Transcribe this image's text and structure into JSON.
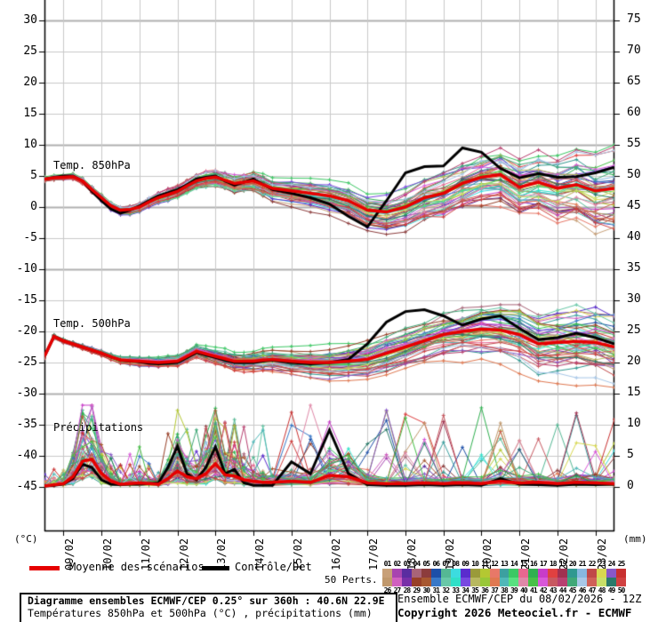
{
  "chart": {
    "unit_left": "(°C)",
    "unit_right": "(mm)",
    "panel_labels": {
      "t850": "Temp. 850hPa",
      "t500": "Temp. 500hPa",
      "precip": "Précipitations"
    },
    "left_ticks": [
      "30",
      "25",
      "20",
      "15",
      "10",
      "5",
      "0",
      "-5",
      "-10",
      "-15",
      "-20",
      "-25",
      "-30",
      "-35",
      "-40",
      "-45"
    ],
    "right_ticks": [
      "75",
      "70",
      "65",
      "60",
      "55",
      "50",
      "45",
      "40",
      "35",
      "30",
      "25",
      "20",
      "15",
      "10",
      "5",
      "0"
    ],
    "dates": [
      "09/02",
      "10/02",
      "11/02",
      "12/02",
      "13/02",
      "14/02",
      "15/02",
      "16/02",
      "17/02",
      "18/02",
      "19/02",
      "20/02",
      "21/02",
      "22/02",
      "23/02"
    ]
  },
  "legend": {
    "mean_label": "Moyenne des scénarios",
    "control_label": "Contrôle/Det",
    "perts_label": "50 Perts.",
    "mean_color": "#e60000",
    "control_color": "#000000",
    "pert_numbers_top": [
      "01",
      "02",
      "03",
      "04",
      "05",
      "06",
      "07",
      "08",
      "09",
      "10",
      "11",
      "12",
      "13",
      "14",
      "15",
      "16",
      "17",
      "18",
      "19",
      "20",
      "21",
      "22",
      "23",
      "24",
      "25"
    ],
    "pert_numbers_bottom": [
      "26",
      "27",
      "28",
      "29",
      "30",
      "31",
      "32",
      "33",
      "34",
      "35",
      "36",
      "37",
      "38",
      "39",
      "40",
      "41",
      "42",
      "43",
      "44",
      "45",
      "46",
      "47",
      "48",
      "49",
      "50"
    ],
    "pert_colors": [
      "#c8a078",
      "#a844b0",
      "#5a2da0",
      "#a86478",
      "#8c3c3c",
      "#1d4fa8",
      "#55b894",
      "#3cdce0",
      "#5a2ccd",
      "#9a9a3a",
      "#b4c832",
      "#e87868",
      "#3ca0a0",
      "#3cc864",
      "#e86890",
      "#30b050",
      "#c83cc8",
      "#e04040",
      "#a03050",
      "#309890",
      "#88b8e0",
      "#c04848",
      "#d8d850",
      "#8858c8",
      "#c83030",
      "#c0986c",
      "#d060c0",
      "#7830a8",
      "#984028",
      "#a85830",
      "#3878c8",
      "#68c8a8",
      "#30e0c8",
      "#7848e0",
      "#b8b860",
      "#98c838",
      "#e07850",
      "#50b8b8",
      "#58e080",
      "#e088a8",
      "#48c048",
      "#d858d8",
      "#c85860",
      "#b84070",
      "#40a878",
      "#a8c8e8",
      "#d06058",
      "#c8e068",
      "#2a7a6a",
      "#d04040"
    ]
  },
  "footer": {
    "title_line1": "Diagramme ensembles ECMWF/CEP 0.25° sur 360h : 40.6N 22.9E",
    "title_line2": "Températures 850hPa et 500hPa (°C) , précipitations (mm)",
    "run_info": "Ensemble ECMWF/CEP du 08/02/2026 - 12Z",
    "copyright": "Copyright 2026 Meteociel.fr - ECMWF"
  },
  "chart_data": {
    "type": "line",
    "title": "Diagramme ensembles ECMWF/CEP 0.25° sur 360h : 40.6N 22.9E",
    "x_axis": {
      "start": "08/02/2026 12Z",
      "hours_max": 360,
      "day_labels": [
        "09/02",
        "10/02",
        "11/02",
        "12/02",
        "13/02",
        "14/02",
        "15/02",
        "16/02",
        "17/02",
        "18/02",
        "19/02",
        "20/02",
        "21/02",
        "22/02",
        "23/02"
      ]
    },
    "left_axis": {
      "unit": "°C",
      "min": -45,
      "max": 30,
      "step": 5
    },
    "right_axis": {
      "unit": "mm",
      "min": 0,
      "max": 75,
      "step": 5
    },
    "grid": true,
    "hours": [
      0,
      6,
      12,
      18,
      24,
      30,
      36,
      42,
      48,
      54,
      60,
      66,
      72,
      78,
      84,
      90,
      96,
      102,
      108,
      114,
      120,
      126,
      132,
      138,
      144,
      156,
      168,
      180,
      192,
      204,
      216,
      228,
      240,
      252,
      264,
      276,
      288,
      300,
      312,
      324,
      336,
      348,
      360
    ],
    "series": [
      {
        "name": "Temp. 850hPa moyenne",
        "panel": "t850",
        "role": "mean",
        "color": "#e60000",
        "values": [
          4.5,
          4.7,
          4.8,
          4.9,
          4.2,
          2.8,
          1.5,
          0.2,
          -0.5,
          -0.4,
          0.0,
          0.8,
          1.5,
          2.0,
          2.5,
          3.4,
          4.2,
          4.6,
          4.8,
          4.3,
          3.8,
          4.0,
          4.2,
          3.6,
          3.0,
          2.6,
          2.2,
          1.8,
          1.0,
          -0.5,
          -0.8,
          0.0,
          1.5,
          2.2,
          3.8,
          4.8,
          5.2,
          3.2,
          4.0,
          3.0,
          3.6,
          2.6,
          3.0
        ]
      },
      {
        "name": "Temp. 850hPa contrôle",
        "panel": "t850",
        "role": "control",
        "color": "#000000",
        "values": [
          4.5,
          4.8,
          5.0,
          5.0,
          4.2,
          2.5,
          1.0,
          -0.3,
          -1.0,
          -0.5,
          0.2,
          1.0,
          1.8,
          2.3,
          2.8,
          3.6,
          4.5,
          4.8,
          5.0,
          4.2,
          3.5,
          4.0,
          4.5,
          3.6,
          2.8,
          2.2,
          1.5,
          0.5,
          -1.5,
          -3.2,
          1.0,
          5.5,
          6.5,
          6.6,
          9.5,
          8.8,
          6.2,
          4.7,
          5.4,
          4.8,
          4.9,
          5.5,
          6.4
        ]
      },
      {
        "name": "Temp. 500hPa moyenne",
        "panel": "t500",
        "role": "mean",
        "color": "#e60000",
        "values": [
          -24.0,
          -20.8,
          -21.5,
          -22.0,
          -22.5,
          -23.0,
          -23.5,
          -24.1,
          -24.6,
          -24.7,
          -24.8,
          -24.9,
          -25.0,
          -24.9,
          -24.8,
          -24.0,
          -23.2,
          -23.6,
          -24.0,
          -24.4,
          -24.8,
          -24.8,
          -24.8,
          -24.6,
          -24.5,
          -24.8,
          -25.0,
          -25.0,
          -24.8,
          -24.5,
          -23.5,
          -22.5,
          -21.5,
          -20.5,
          -20.0,
          -19.6,
          -19.8,
          -20.5,
          -22.0,
          -21.8,
          -21.6,
          -21.8,
          -22.5
        ]
      },
      {
        "name": "Temp. 500hPa contrôle",
        "panel": "t500",
        "role": "control",
        "color": "#000000",
        "values": [
          -24.0,
          -20.8,
          -21.5,
          -22.0,
          -22.5,
          -23.0,
          -23.5,
          -24.1,
          -24.6,
          -24.8,
          -24.9,
          -25.1,
          -25.2,
          -25.1,
          -25.0,
          -24.2,
          -23.4,
          -23.8,
          -24.2,
          -24.6,
          -25.0,
          -25.0,
          -25.0,
          -24.8,
          -24.6,
          -25.0,
          -25.2,
          -25.0,
          -24.5,
          -22.0,
          -18.5,
          -16.8,
          -16.5,
          -17.5,
          -19.0,
          -18.0,
          -17.5,
          -19.5,
          -21.3,
          -21.0,
          -20.3,
          -21.0,
          -22.0
        ]
      },
      {
        "name": "Précipitations moyenne",
        "panel": "precip",
        "role": "mean",
        "color": "#e60000",
        "values": [
          0.0,
          0.2,
          0.4,
          1.5,
          4.0,
          4.3,
          2.0,
          0.8,
          0.3,
          0.4,
          0.5,
          0.4,
          0.3,
          1.2,
          2.4,
          1.5,
          1.2,
          2.0,
          3.6,
          1.8,
          1.6,
          1.0,
          0.8,
          0.6,
          0.6,
          0.8,
          0.6,
          1.7,
          1.5,
          0.5,
          0.4,
          0.4,
          0.5,
          0.4,
          0.5,
          0.4,
          0.8,
          0.5,
          0.6,
          0.4,
          0.6,
          0.5,
          0.4
        ]
      },
      {
        "name": "Précipitations contrôle",
        "panel": "precip",
        "role": "control",
        "color": "#000000",
        "values": [
          0.0,
          0.1,
          0.3,
          1.2,
          3.5,
          3.0,
          1.0,
          0.3,
          0.2,
          0.3,
          0.3,
          0.4,
          0.5,
          3.0,
          6.4,
          2.0,
          1.0,
          3.0,
          6.3,
          2.0,
          2.7,
          0.5,
          0.1,
          0.1,
          0.1,
          3.9,
          2.0,
          9.0,
          2.0,
          0.2,
          0.1,
          0.1,
          0.2,
          0.1,
          0.2,
          0.1,
          1.2,
          0.3,
          0.2,
          0.1,
          0.3,
          0.2,
          0.3
        ]
      }
    ],
    "ensemble": {
      "count": 50,
      "spread_t850": [
        0.35,
        5.2,
        1.6
      ],
      "spread_t500": [
        0.3,
        4.8,
        1.6
      ],
      "precip_max": 13
    }
  }
}
